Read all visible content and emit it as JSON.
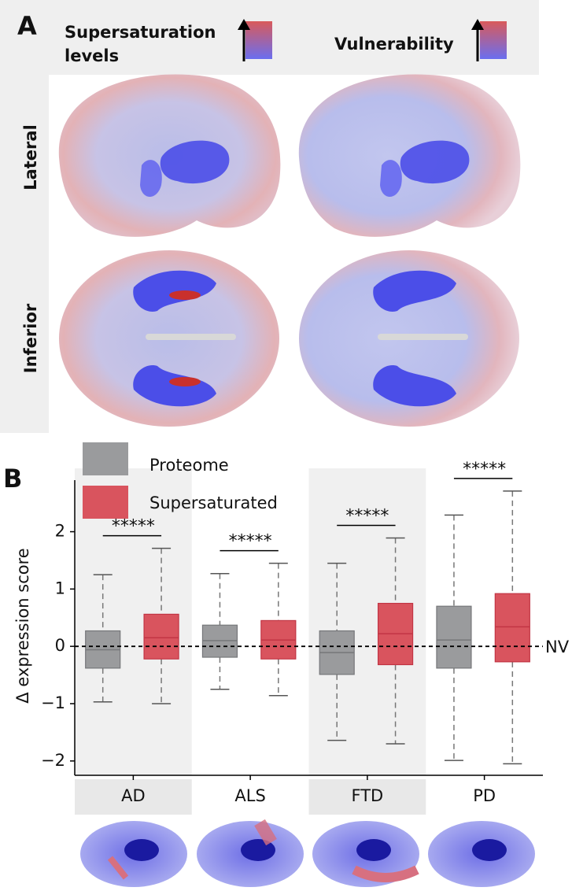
{
  "panel_a": {
    "label": "A",
    "columns": [
      {
        "title_lines": [
          "Supersaturation",
          "levels"
        ]
      },
      {
        "title_lines": [
          "Vulnerability"
        ]
      }
    ],
    "rows": [
      "Lateral",
      "Inferior"
    ]
  },
  "chart_data": {
    "type": "box",
    "label": "B",
    "y_label": "Δ expression score",
    "categories": [
      "AD",
      "ALS",
      "FTD",
      "PD"
    ],
    "series": [
      {
        "name": "Proteome",
        "color": "#9a9b9d",
        "stroke": "#76777a",
        "whisker_low": [
          -0.97,
          -0.75,
          -1.64,
          -1.99
        ],
        "q1": [
          -0.38,
          -0.19,
          -0.49,
          -0.38
        ],
        "median": [
          -0.06,
          0.1,
          -0.11,
          0.11
        ],
        "q3": [
          0.27,
          0.37,
          0.27,
          0.7
        ],
        "whisker_high": [
          1.25,
          1.27,
          1.45,
          2.29
        ]
      },
      {
        "name": "Supersaturated",
        "color": "#d9545e",
        "stroke": "#c23544",
        "whisker_low": [
          -1.0,
          -0.86,
          -1.7,
          -2.05
        ],
        "q1": [
          -0.22,
          -0.22,
          -0.32,
          -0.27
        ],
        "median": [
          0.15,
          0.11,
          0.22,
          0.34
        ],
        "q3": [
          0.56,
          0.45,
          0.75,
          0.92
        ],
        "whisker_high": [
          1.71,
          1.45,
          1.89,
          2.71
        ]
      }
    ],
    "annotations": [
      "*****",
      "*****",
      "*****",
      "*****"
    ],
    "reference_line": {
      "value": 0,
      "label": "NV"
    },
    "ylim": [
      -2.25,
      2.9
    ],
    "yticks": [
      {
        "value": -2,
        "label": "−2"
      },
      {
        "value": -1,
        "label": "−1"
      },
      0,
      1,
      2
    ],
    "shaded_categories": [
      true,
      false,
      true,
      false
    ]
  }
}
